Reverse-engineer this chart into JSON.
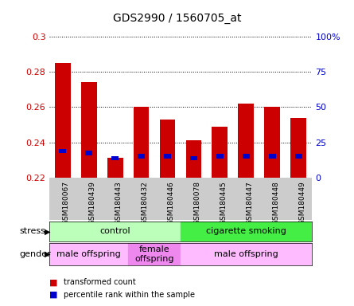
{
  "title": "GDS2990 / 1560705_at",
  "samples": [
    "GSM180067",
    "GSM180439",
    "GSM180443",
    "GSM180432",
    "GSM180446",
    "GSM180078",
    "GSM180445",
    "GSM180447",
    "GSM180448",
    "GSM180449"
  ],
  "red_values": [
    0.285,
    0.274,
    0.231,
    0.26,
    0.253,
    0.241,
    0.249,
    0.262,
    0.26,
    0.254
  ],
  "blue_values": [
    0.235,
    0.234,
    0.231,
    0.232,
    0.232,
    0.231,
    0.232,
    0.232,
    0.232,
    0.232
  ],
  "ymin": 0.22,
  "ymax": 0.3,
  "yticks": [
    0.22,
    0.24,
    0.26,
    0.28,
    0.3
  ],
  "ytick_labels": [
    "0.22",
    "0.24",
    "0.26",
    "0.28",
    "0.3"
  ],
  "right_yticks": [
    0,
    25,
    50,
    75,
    100
  ],
  "right_ytick_labels": [
    "0",
    "25",
    "50",
    "75",
    "100%"
  ],
  "bar_color": "#cc0000",
  "blue_color": "#0000cc",
  "bar_width": 0.6,
  "stress_groups": [
    {
      "label": "control",
      "start": 0,
      "end": 5,
      "color": "#bbffbb"
    },
    {
      "label": "cigarette smoking",
      "start": 5,
      "end": 10,
      "color": "#44ee44"
    }
  ],
  "gender_groups": [
    {
      "label": "male offspring",
      "start": 0,
      "end": 3,
      "color": "#ffbbff"
    },
    {
      "label": "female\noffspring",
      "start": 3,
      "end": 5,
      "color": "#ee88ee"
    },
    {
      "label": "male offspring",
      "start": 5,
      "end": 10,
      "color": "#ffbbff"
    }
  ],
  "stress_label": "stress",
  "gender_label": "gender",
  "legend_red": "transformed count",
  "legend_blue": "percentile rank within the sample",
  "bg_color": "#ffffff",
  "tick_area_color": "#cccccc",
  "left_tick_color": "#cc0000",
  "right_tick_color": "#0000cc"
}
